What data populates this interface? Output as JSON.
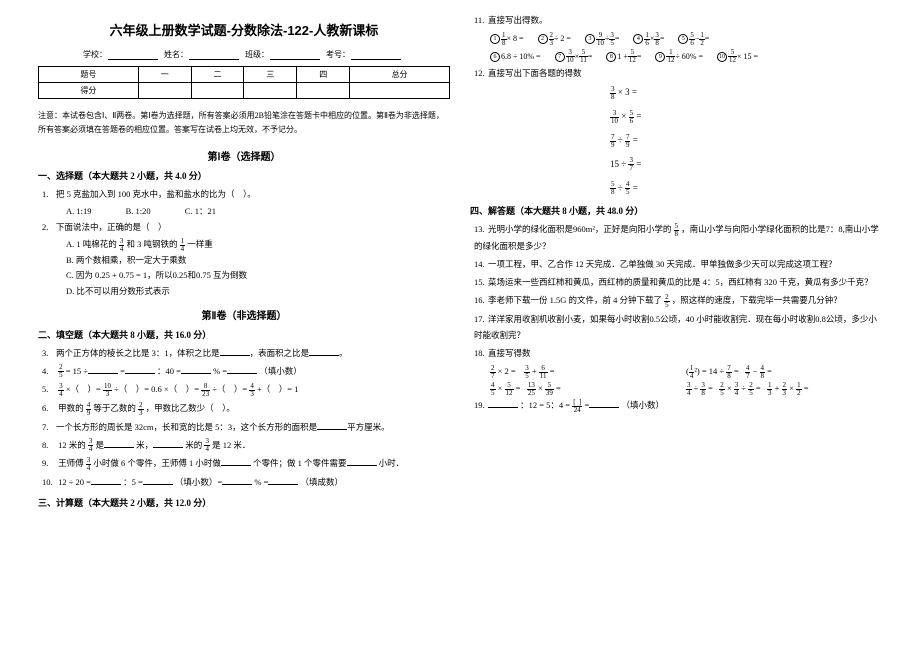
{
  "title": "六年级上册数学试题-分数除法-122-人教新课标",
  "meta": {
    "school": "学校：",
    "name": "姓名：",
    "class": "班级：",
    "exam": "考号："
  },
  "score_table": {
    "row1": [
      "题号",
      "一",
      "二",
      "三",
      "四",
      "总分"
    ],
    "row2": [
      "得分",
      "",
      "",
      "",
      "",
      ""
    ]
  },
  "note": "注意：本试卷包含Ⅰ、Ⅱ两卷。第Ⅰ卷为选择题，所有答案必须用2B铅笔涂在答题卡中相应的位置。第Ⅱ卷为非选择题，所有答案必须填在答题卷的相应位置。答案写在试卷上均无效，不予记分。",
  "sec1": "第Ⅰ卷（选择题）",
  "h1": "一、选择题（本大题共 2 小题，共 4.0 分）",
  "q1": {
    "stem": "把 5 克盐加入到 100 克水中，盐和盐水的比为（　）。",
    "A": "A. 1:19",
    "B": "B. 1:20",
    "C": "C. 1：21"
  },
  "q2": {
    "stem": "下面说法中，正确的是（　）",
    "A": "A. 1 吨棉花的",
    "A2": "和 3 吨钢铁的",
    "A3": "一样重",
    "B": "B. 两个数相乘，积一定大于乘数",
    "C": "C. 因为 0.25 + 0.75 = 1，所以0.25和0.75 互为倒数",
    "D": "D. 比不可以用分数形式表示"
  },
  "sec2": "第Ⅱ卷（非选择题）",
  "h2": "二、填空题（本大题共 8 小题，共 16.0 分）",
  "q3": "两个正方体的棱长之比是 3：1，体积之比是",
  "q3b": "，表面积之比是",
  "q3c": "。",
  "q4a": "= 15 ÷",
  "q4b": "=",
  "q4c": "：40 =",
  "q4d": "% =",
  "q4e": "（填小数）",
  "q5a": "×（　）=",
  "q5b": "÷（　）= 0.6 ×（　）=",
  "q5c": "÷（　）=",
  "q5d": "+（　）= 1",
  "q6a": "甲数的",
  "q6b": "等于乙数的",
  "q6c": "，甲数比乙数少（　）。",
  "q7a": "一个长方形的周长是 32cm，长和宽的比是 5：3，这个长方形的面积是",
  "q7b": "平方厘米。",
  "q8a": "12 米的",
  "q8b": "是",
  "q8c": "米，",
  "q8d": "米的",
  "q8e": "是 12 米．",
  "q9a": "王师傅",
  "q9b": "小时做 6 个零件，王师傅 1 小时做",
  "q9c": "个零件；做 1 个零件需要",
  "q9d": "小时．",
  "q10a": "12 ÷ 20 =",
  "q10b": "：5 =",
  "q10c": "（填小数）=",
  "q10d": "% =",
  "q10e": "（填成数）",
  "h3": "三、计算题（本大题共 2 小题，共 12.0 分）",
  "q11": "直接写出得数。",
  "eq11": {
    "r1": [
      "× 8 =",
      "÷ 2 =",
      "÷",
      "=",
      "×",
      "=",
      "−",
      "="
    ],
    "r2": [
      "6.8 ÷ 10% =",
      "×",
      "=",
      "1 +",
      "=",
      "÷ 60% =",
      "× 15 ="
    ]
  },
  "q12": "直接写出下面各题的得数",
  "eq12": [
    "× 3 =",
    "×",
    "=",
    "÷",
    "=",
    "15 ÷",
    "=",
    "÷",
    "="
  ],
  "h4": "四、解答题（本大题共 8 小题，共 48.0 分）",
  "q13a": "光明小学的绿化面积是960m²，正好是向阳小学的",
  "q13b": "，南山小学与向阳小学绿化面积的比是7：8,南山小学的绿化面积是多少？",
  "q14": "一项工程，甲、乙合作 12 天完成．乙单独做 30 天完成．甲单独做多少天可以完成这项工程？",
  "q15": "菜场运来一些西红柿和黄瓜，西红柿的质量和黄瓜的比是 4：5，西红柿有 320 千克，黄瓜有多少千克？",
  "q16a": "李老师下载一份 1.5G 的文件，前 4 分钟下载了",
  "q16b": "，照这样的速度，下载完毕一共需要几分钟？",
  "q17": "洋洋家用收割机收割小麦，如果每小时收割0.5公顷，40 小时能收割完．现在每小时收割0.8公顷，多少小时能收割完？",
  "q18": "直接写得数",
  "grid": {
    "c": [
      "× 2 =",
      "+",
      "=",
      "(",
      "²) = 14 ÷",
      "=",
      "−",
      "=",
      "×",
      "=",
      "×",
      "=",
      "÷",
      "=",
      "×",
      "÷",
      "=",
      "+",
      "×",
      "="
    ]
  },
  "q19a": "：12 = 5：4 =",
  "q19b": "=",
  "q19c": "（填小数）",
  "fracs": {
    "f34": {
      "n": "3",
      "d": "4"
    },
    "f14": {
      "n": "1",
      "d": "4"
    },
    "f25": {
      "n": "2",
      "d": "5"
    },
    "f103": {
      "n": "10",
      "d": "3"
    },
    "f823": {
      "n": "8",
      "d": "23"
    },
    "f43": {
      "n": "4",
      "d": "3"
    },
    "f49": {
      "n": "4",
      "d": "9"
    },
    "f23": {
      "n": "2",
      "d": "3"
    },
    "f38": {
      "n": "3",
      "d": "8"
    },
    "f18": {
      "n": "1",
      "d": "8"
    },
    "f310": {
      "n": "3",
      "d": "10"
    },
    "f56": {
      "n": "5",
      "d": "6"
    },
    "f79": {
      "n": "7",
      "d": "9"
    },
    "f37": {
      "n": "3",
      "d": "7"
    },
    "f58": {
      "n": "5",
      "d": "8"
    },
    "f45": {
      "n": "4",
      "d": "5"
    },
    "f910": {
      "n": "9",
      "d": "10"
    },
    "f35": {
      "n": "3",
      "d": "5"
    },
    "f16": {
      "n": "1",
      "d": "6"
    },
    "f512": {
      "n": "5",
      "d": "12"
    },
    "f511": {
      "n": "5",
      "d": "11"
    },
    "f12": {
      "n": "1",
      "d": "2"
    },
    "f112": {
      "n": "1",
      "d": "12"
    },
    "f27": {
      "n": "2",
      "d": "7"
    },
    "f611": {
      "n": "6",
      "d": "11"
    },
    "f78": {
      "n": "7",
      "d": "8"
    },
    "f47": {
      "n": "4",
      "d": "7"
    },
    "f48": {
      "n": "4",
      "d": "8"
    },
    "f1325": {
      "n": "13",
      "d": "25"
    },
    "f539": {
      "n": "5",
      "d": "39"
    },
    "f13": {
      "n": "1",
      "d": "3"
    },
    "f124": {
      "n": "[ ]",
      "d": "24"
    }
  }
}
